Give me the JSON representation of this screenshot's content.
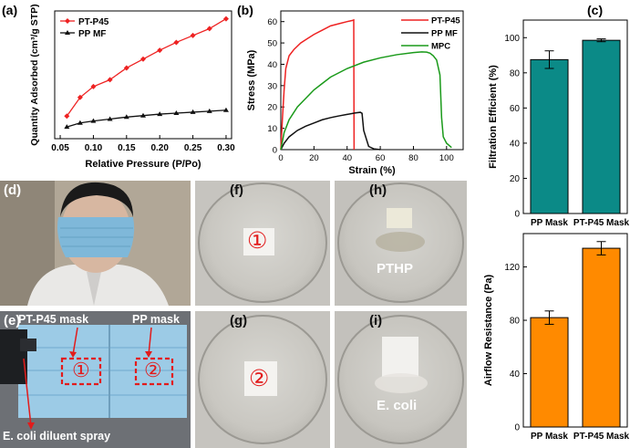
{
  "panel_labels": {
    "a": "(a)",
    "b": "(b)",
    "c": "(c)",
    "d": "(d)",
    "e": "(e)",
    "f": "(f)",
    "g": "(g)",
    "h": "(h)",
    "i": "(i)"
  },
  "photos": {
    "e": {
      "pt_label": "PT-P45 mask",
      "pp_label": "PP mask",
      "spray_label": "E. coli diluent spray",
      "circle1": "①",
      "circle2": "②"
    },
    "f": {
      "circle": "①"
    },
    "g": {
      "circle": "②"
    },
    "h": {
      "text": "PTHP"
    },
    "i": {
      "text": "E. coli"
    }
  },
  "colors": {
    "red": "#ee2222",
    "black": "#111111",
    "green": "#1a9a1a",
    "teal": "#0b8a87",
    "orange": "#ff8a00"
  },
  "chart_data": [
    {
      "id": "a",
      "type": "line",
      "xlabel": "Relative Pressure (P/Po)",
      "ylabel": "Quantity Adsorbed (cm³/g STP)",
      "xlim": [
        0.0417,
        0.3083
      ],
      "ylim": [
        0,
        1.3
      ],
      "legend": "top-left",
      "xticks": [
        "0.05",
        "0.10",
        "0.15",
        "0.20",
        "0.25",
        "0.30"
      ],
      "yticks": [],
      "series": [
        {
          "name": "PT-P45",
          "color": "#ee2222",
          "marker": "diamond",
          "x": [
            0.06,
            0.08,
            0.1,
            0.125,
            0.15,
            0.175,
            0.2,
            0.225,
            0.25,
            0.275,
            0.3
          ],
          "y": [
            0.23,
            0.42,
            0.53,
            0.6,
            0.72,
            0.81,
            0.9,
            0.98,
            1.05,
            1.12,
            1.22
          ]
        },
        {
          "name": "PP MF",
          "color": "#111111",
          "marker": "triangle",
          "x": [
            0.06,
            0.08,
            0.1,
            0.125,
            0.15,
            0.175,
            0.2,
            0.225,
            0.25,
            0.275,
            0.3
          ],
          "y": [
            0.12,
            0.16,
            0.18,
            0.2,
            0.22,
            0.235,
            0.25,
            0.26,
            0.27,
            0.28,
            0.29
          ]
        }
      ]
    },
    {
      "id": "b",
      "type": "line",
      "xlabel": "Strain (%)",
      "ylabel": "Stress (MPa)",
      "xlim": [
        0,
        110
      ],
      "ylim": [
        0,
        65
      ],
      "legend": "top-right",
      "xticks": [
        "0",
        "20",
        "40",
        "60",
        "80",
        "100"
      ],
      "yticks": [
        "0",
        "10",
        "20",
        "30",
        "40",
        "50",
        "60"
      ],
      "series": [
        {
          "name": "PT-P45",
          "color": "#ee2222",
          "x": [
            0,
            1,
            2,
            3,
            5,
            8,
            12,
            16,
            20,
            25,
            30,
            35,
            40,
            43,
            44,
            44.2
          ],
          "y": [
            0,
            15,
            28,
            38,
            44,
            47,
            50,
            52,
            54,
            56,
            58,
            59,
            60,
            60.5,
            60.8,
            0
          ]
        },
        {
          "name": "PP MF",
          "color": "#111111",
          "x": [
            0,
            2,
            5,
            10,
            15,
            20,
            25,
            30,
            35,
            40,
            45,
            48,
            49,
            50,
            53,
            56,
            60
          ],
          "y": [
            0,
            3,
            6,
            9,
            11,
            12.5,
            14,
            15,
            15.8,
            16.5,
            17.2,
            17.5,
            17,
            9,
            1.5,
            0.4,
            0
          ]
        },
        {
          "name": "MPC",
          "color": "#1a9a1a",
          "x": [
            0,
            2,
            5,
            10,
            15,
            20,
            25,
            30,
            40,
            50,
            60,
            70,
            80,
            85,
            88,
            90,
            92,
            94,
            96,
            97,
            98,
            100,
            103
          ],
          "y": [
            0,
            8,
            14,
            20,
            24,
            28,
            31,
            34,
            38,
            41,
            43,
            44.5,
            45.5,
            45.8,
            45.7,
            45.2,
            44,
            42,
            35,
            15,
            6,
            3,
            1
          ]
        }
      ]
    },
    {
      "id": "c-top",
      "type": "bar",
      "categories": [
        "PP Mask",
        "PT-P45 Mask"
      ],
      "values": [
        87.5,
        98.5
      ],
      "errors": [
        5,
        0.8
      ],
      "xlabel": "",
      "ylabel": "Filtration Efficient (%)",
      "ylim": [
        0,
        110
      ],
      "yticks": [
        "0",
        "20",
        "40",
        "60",
        "80",
        "100"
      ],
      "color": "#0b8a87"
    },
    {
      "id": "c-bottom",
      "type": "bar",
      "categories": [
        "PP Mask",
        "PT-P45 Mask"
      ],
      "values": [
        82,
        134
      ],
      "errors": [
        5,
        5
      ],
      "xlabel": "",
      "ylabel": "Airflow Resistance (Pa)",
      "ylim": [
        0,
        145
      ],
      "yticks": [
        "0",
        "40",
        "80",
        "120"
      ],
      "color": "#ff8a00"
    }
  ]
}
